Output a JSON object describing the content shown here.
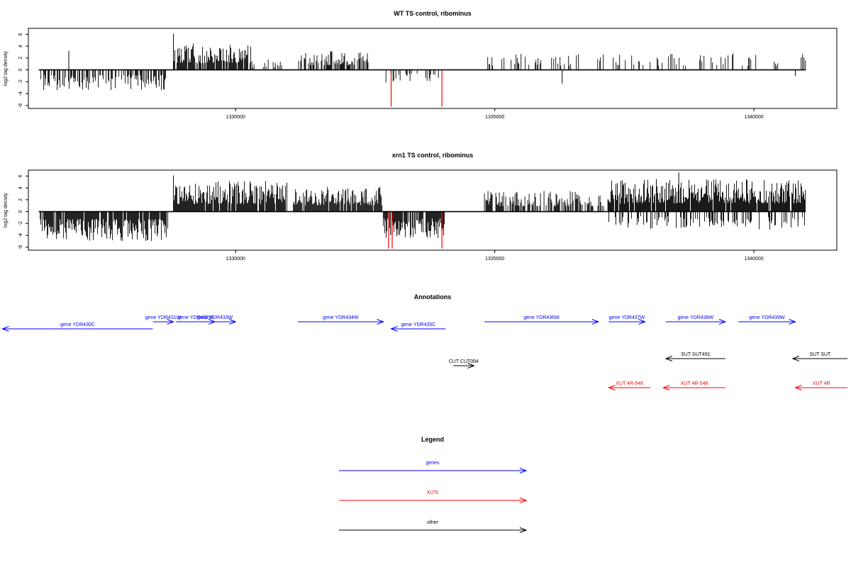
{
  "chart_data": [
    {
      "type": "bar",
      "title": "WT TS control, ribominus",
      "ylabel": "log2 tag density",
      "xlim": [
        1326000,
        1341600
      ],
      "ylim": [
        -6.5,
        7
      ],
      "x_ticks": [
        1330000,
        1335000,
        1340000
      ],
      "y_ticks": [
        -6,
        -4,
        -2,
        0,
        2,
        4,
        6
      ],
      "baseline_range": [
        1326200,
        1341000
      ],
      "grid": false,
      "series_description_colors": {
        "normal": "#000000",
        "highlight": "#ff0000"
      },
      "positive_regions": [
        {
          "from": 1328800,
          "to": 1330300,
          "max": 4.5,
          "density": 0.85
        },
        {
          "from": 1330300,
          "to": 1330900,
          "max": 1.8,
          "density": 0.3
        },
        {
          "from": 1331200,
          "to": 1332600,
          "max": 3.2,
          "density": 0.6
        },
        {
          "from": 1334850,
          "to": 1341000,
          "max": 2.8,
          "density": 0.22
        }
      ],
      "negative_regions": [
        {
          "from": 1326200,
          "to": 1328700,
          "min": -3.5,
          "density": 0.5
        },
        {
          "from": 1332900,
          "to": 1333950,
          "min": -2.5,
          "density": 0.35
        }
      ],
      "spikes": [
        {
          "x": 1326780,
          "y": 3.2
        },
        {
          "x": 1328800,
          "y": 6.1
        },
        {
          "x": 1336300,
          "y": -2.3
        },
        {
          "x": 1340800,
          "y": -1.0
        }
      ],
      "highlight_bars": [
        {
          "x": 1333000,
          "y": -6.2
        },
        {
          "x": 1333980,
          "y": -6.2
        }
      ]
    },
    {
      "type": "bar",
      "title": "xrn1 TS control, ribominus",
      "ylabel": "log2 tag density",
      "xlim": [
        1326000,
        1341600
      ],
      "ylim": [
        -6.5,
        7
      ],
      "x_ticks": [
        1330000,
        1335000,
        1340000
      ],
      "y_ticks": [
        -6,
        -4,
        -2,
        0,
        2,
        4,
        6
      ],
      "baseline_range": [
        1326200,
        1341000
      ],
      "grid": false,
      "series_description_colors": {
        "normal": "#000000",
        "highlight": "#ff0000"
      },
      "positive_regions": [
        {
          "from": 1328800,
          "to": 1331000,
          "max": 5.2,
          "density": 0.9
        },
        {
          "from": 1331100,
          "to": 1332850,
          "max": 4.2,
          "density": 0.85
        },
        {
          "from": 1334800,
          "to": 1337200,
          "max": 3.5,
          "density": 0.6
        },
        {
          "from": 1337200,
          "to": 1341000,
          "max": 5.5,
          "density": 0.95
        }
      ],
      "negative_regions": [
        {
          "from": 1326200,
          "to": 1328700,
          "min": -5.0,
          "density": 0.9
        },
        {
          "from": 1332850,
          "to": 1334050,
          "min": -4.5,
          "density": 0.85
        },
        {
          "from": 1337200,
          "to": 1341000,
          "min": -3.0,
          "density": 0.35
        }
      ],
      "spikes": [
        {
          "x": 1328800,
          "y": 6.1
        },
        {
          "x": 1338550,
          "y": 6.6
        },
        {
          "x": 1340850,
          "y": -2.5
        }
      ],
      "highlight_bars": [
        {
          "x": 1332950,
          "y": -6.2
        },
        {
          "x": 1333020,
          "y": -6.2
        },
        {
          "x": 1333980,
          "y": -6.2
        }
      ]
    }
  ],
  "annotations": {
    "title": "Annotations",
    "items": [
      {
        "label": "gene YDR430C",
        "from": 1328400,
        "to": 1325500,
        "row": 1,
        "color": "#0000ff"
      },
      {
        "label": "gene YDR431W",
        "from": 1328400,
        "to": 1328800,
        "row": 0,
        "color": "#0000ff"
      },
      {
        "label": "gene YDR432W",
        "from": 1328850,
        "to": 1329600,
        "row": 0,
        "color": "#0000ff"
      },
      {
        "label": "gene YDR433W",
        "from": 1329200,
        "to": 1330000,
        "row": 0,
        "color": "#0000ff"
      },
      {
        "label": "gene YDR434W",
        "from": 1331200,
        "to": 1332850,
        "row": 0,
        "color": "#0000ff"
      },
      {
        "label": "gene YDR435C",
        "from": 1334050,
        "to": 1333000,
        "row": 1,
        "color": "#0000ff"
      },
      {
        "label": "gene YDR436W",
        "from": 1334800,
        "to": 1337000,
        "row": 0,
        "color": "#0000ff"
      },
      {
        "label": "gene YDR437W",
        "from": 1337200,
        "to": 1337900,
        "row": 0,
        "color": "#0000ff"
      },
      {
        "label": "gene YDR438W",
        "from": 1338300,
        "to": 1339450,
        "row": 0,
        "color": "#0000ff"
      },
      {
        "label": "gene YDR439W",
        "from": 1339700,
        "to": 1340800,
        "row": 0,
        "color": "#0000ff"
      },
      {
        "label": "CUT CUT094",
        "from": 1334200,
        "to": 1334600,
        "row": 2,
        "color": "#000000"
      },
      {
        "label": "SUT SUT491",
        "from": 1339450,
        "to": 1338300,
        "row": 3,
        "color": "#000000"
      },
      {
        "label": "SUT SUT",
        "from": 1342000,
        "to": 1340750,
        "row": 3,
        "color": "#000000"
      },
      {
        "label": "XUT 4R-546",
        "from": 1338000,
        "to": 1337200,
        "row": 4,
        "color": "#ff0000"
      },
      {
        "label": "XUT 4R-548",
        "from": 1339450,
        "to": 1338250,
        "row": 4,
        "color": "#ff0000"
      },
      {
        "label": "XUT 4R",
        "from": 1342000,
        "to": 1340800,
        "row": 4,
        "color": "#ff0000"
      }
    ]
  },
  "legend": {
    "title": "Legend",
    "entries": [
      {
        "label": "genes",
        "color": "#0000ff"
      },
      {
        "label": "XUTs",
        "color": "#ff0000"
      },
      {
        "label": "other",
        "color": "#000000"
      }
    ]
  }
}
